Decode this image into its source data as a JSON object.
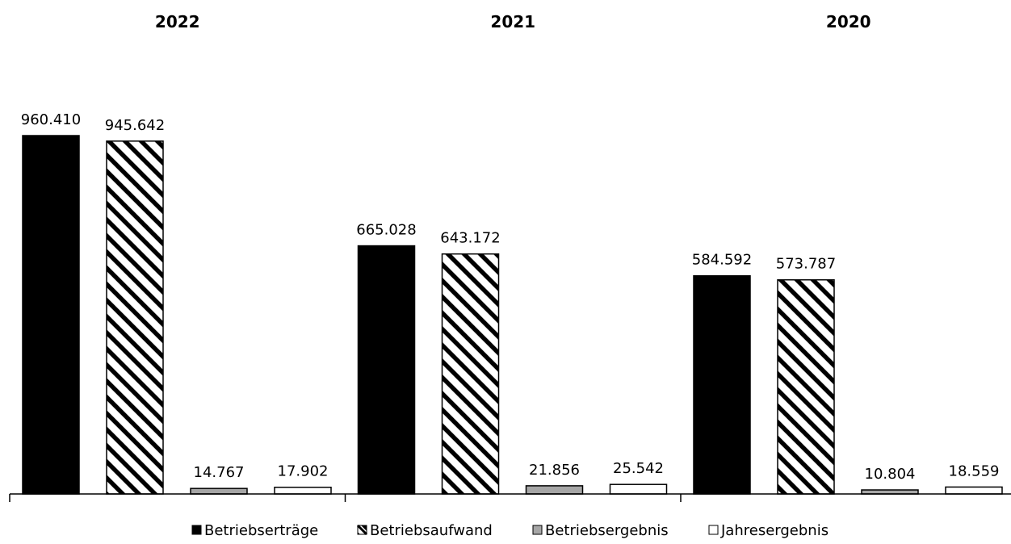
{
  "chart_data": {
    "type": "bar",
    "categories": [
      "2022",
      "2021",
      "2020"
    ],
    "series": [
      {
        "name": "Betriebserträge",
        "values": [
          960410,
          665028,
          584592
        ],
        "labels": [
          "960.410",
          "665.028",
          "584.592"
        ],
        "fill": "#000000",
        "pattern": "solid"
      },
      {
        "name": "Betriebsaufwand",
        "values": [
          945642,
          643172,
          573787
        ],
        "labels": [
          "945.642",
          "643.172",
          "573.787"
        ],
        "fill": "#ffffff",
        "pattern": "diagonal-hatch"
      },
      {
        "name": "Betriebsergebnis",
        "values": [
          14767,
          21856,
          10804
        ],
        "labels": [
          "14.767",
          "21.856",
          "10.804"
        ],
        "fill": "#a6a6a6",
        "pattern": "solid"
      },
      {
        "name": "Jahresergebnis",
        "values": [
          17902,
          25542,
          18559
        ],
        "labels": [
          "17.902",
          "25.542",
          "18.559"
        ],
        "fill": "#ffffff",
        "pattern": "solid"
      }
    ],
    "ylim": [
      0,
      960410
    ],
    "legend_position": "bottom",
    "grid": false
  }
}
